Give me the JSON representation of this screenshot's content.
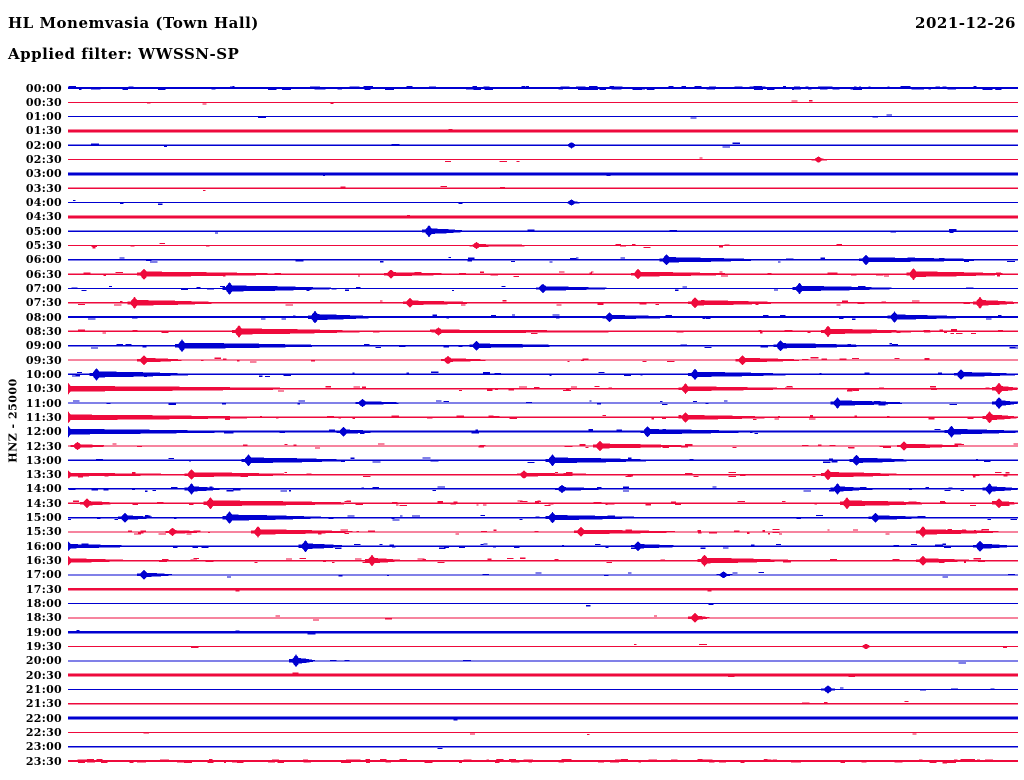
{
  "header": {
    "station_title": "HL Monemvasia (Town Hall)",
    "date": "2021-12-26",
    "filter_label": "Applied filter: WWSSN-SP"
  },
  "axis": {
    "channel_scale_label": "HNZ - 25000"
  },
  "colors": {
    "blue": "#0000d0",
    "red": "#ee0a3c",
    "text": "#000000",
    "background": "#ffffff"
  },
  "chart_data": {
    "type": "line",
    "subtype": "helicorder",
    "title": "HL Monemvasia (Town Hall)",
    "date": "2021-12-26",
    "filter": "WWSSN-SP",
    "channel": "HNZ",
    "scale": 25000,
    "minutes_per_row": 30,
    "row_order": "top-to-bottom",
    "color_cycle": [
      "blue",
      "red"
    ],
    "legend": "rows: label=start time (UTC); base=baseline thickness px; noise=speckle density 0-1; events: t=onset as fraction of 30-min row, d=coda duration fraction, a=amplitude px",
    "rows": [
      {
        "label": "00:00",
        "color": "blue",
        "base": 1.8,
        "noise": 0.95,
        "events": []
      },
      {
        "label": "00:30",
        "color": "red",
        "base": 1.1,
        "noise": 0.06,
        "events": []
      },
      {
        "label": "01:00",
        "color": "blue",
        "base": 1.1,
        "noise": 0.04,
        "events": []
      },
      {
        "label": "01:30",
        "color": "red",
        "base": 2.8,
        "noise": 0.03,
        "events": []
      },
      {
        "label": "02:00",
        "color": "blue",
        "base": 1.1,
        "noise": 0.05,
        "events": [
          {
            "t": 0.53,
            "d": 0.01,
            "a": 1.2
          }
        ]
      },
      {
        "label": "02:30",
        "color": "red",
        "base": 1.1,
        "noise": 0.04,
        "events": [
          {
            "t": 0.79,
            "d": 0.01,
            "a": 1.2
          }
        ]
      },
      {
        "label": "03:00",
        "color": "blue",
        "base": 2.8,
        "noise": 0.03,
        "events": []
      },
      {
        "label": "03:30",
        "color": "red",
        "base": 1.1,
        "noise": 0.04,
        "events": []
      },
      {
        "label": "04:00",
        "color": "blue",
        "base": 1.1,
        "noise": 0.04,
        "events": [
          {
            "t": 0.53,
            "d": 0.01,
            "a": 1.2
          }
        ]
      },
      {
        "label": "04:30",
        "color": "red",
        "base": 2.8,
        "noise": 0.03,
        "events": []
      },
      {
        "label": "05:00",
        "color": "blue",
        "base": 1.2,
        "noise": 0.05,
        "events": [
          {
            "t": 0.38,
            "d": 0.04,
            "a": 2.8
          }
        ]
      },
      {
        "label": "05:30",
        "color": "red",
        "base": 1.1,
        "noise": 0.12,
        "events": [
          {
            "t": 0.43,
            "d": 0.06,
            "a": 1.4
          }
        ]
      },
      {
        "label": "06:00",
        "color": "blue",
        "base": 1.3,
        "noise": 0.25,
        "events": [
          {
            "t": 0.63,
            "d": 0.1,
            "a": 2.6
          },
          {
            "t": 0.84,
            "d": 0.13,
            "a": 2.4
          }
        ]
      },
      {
        "label": "06:30",
        "color": "red",
        "base": 1.5,
        "noise": 0.3,
        "events": [
          {
            "t": 0.08,
            "d": 0.14,
            "a": 2.6
          },
          {
            "t": 0.34,
            "d": 0.06,
            "a": 2.0
          },
          {
            "t": 0.6,
            "d": 0.1,
            "a": 2.4
          },
          {
            "t": 0.89,
            "d": 0.1,
            "a": 2.8
          }
        ]
      },
      {
        "label": "07:00",
        "color": "blue",
        "base": 1.3,
        "noise": 0.2,
        "events": [
          {
            "t": 0.17,
            "d": 0.11,
            "a": 3.0
          },
          {
            "t": 0.5,
            "d": 0.07,
            "a": 2.2
          },
          {
            "t": 0.77,
            "d": 0.1,
            "a": 2.6
          }
        ]
      },
      {
        "label": "07:30",
        "color": "red",
        "base": 1.4,
        "noise": 0.25,
        "events": [
          {
            "t": 0.07,
            "d": 0.09,
            "a": 2.8
          },
          {
            "t": 0.36,
            "d": 0.07,
            "a": 2.2
          },
          {
            "t": 0.66,
            "d": 0.09,
            "a": 2.6
          },
          {
            "t": 0.96,
            "d": 0.04,
            "a": 2.8
          }
        ]
      },
      {
        "label": "08:00",
        "color": "blue",
        "base": 2.0,
        "noise": 0.3,
        "events": [
          {
            "t": 0.26,
            "d": 0.06,
            "a": 3.0
          },
          {
            "t": 0.57,
            "d": 0.06,
            "a": 2.2
          },
          {
            "t": 0.87,
            "d": 0.07,
            "a": 2.6
          }
        ]
      },
      {
        "label": "08:30",
        "color": "red",
        "base": 1.5,
        "noise": 0.25,
        "events": [
          {
            "t": 0.18,
            "d": 0.13,
            "a": 3.0
          },
          {
            "t": 0.39,
            "d": 0.19,
            "a": 1.8
          },
          {
            "t": 0.8,
            "d": 0.09,
            "a": 2.6
          }
        ]
      },
      {
        "label": "09:00",
        "color": "blue",
        "base": 1.5,
        "noise": 0.25,
        "events": [
          {
            "t": 0.12,
            "d": 0.15,
            "a": 3.0
          },
          {
            "t": 0.43,
            "d": 0.09,
            "a": 2.2
          },
          {
            "t": 0.75,
            "d": 0.09,
            "a": 2.6
          }
        ]
      },
      {
        "label": "09:30",
        "color": "red",
        "base": 1.3,
        "noise": 0.2,
        "events": [
          {
            "t": 0.08,
            "d": 0.04,
            "a": 2.2
          },
          {
            "t": 0.4,
            "d": 0.04,
            "a": 1.8
          },
          {
            "t": 0.71,
            "d": 0.06,
            "a": 2.2
          }
        ]
      },
      {
        "label": "10:00",
        "color": "blue",
        "base": 1.5,
        "noise": 0.25,
        "events": [
          {
            "t": 0.03,
            "d": 0.1,
            "a": 3.0
          },
          {
            "t": 0.66,
            "d": 0.1,
            "a": 2.6
          },
          {
            "t": 0.94,
            "d": 0.06,
            "a": 2.4
          }
        ]
      },
      {
        "label": "10:30",
        "color": "red",
        "base": 1.8,
        "noise": 0.3,
        "events": [
          {
            "t": 0.0,
            "d": 0.23,
            "a": 2.8
          },
          {
            "t": 0.65,
            "d": 0.1,
            "a": 2.4
          },
          {
            "t": 0.98,
            "d": 0.02,
            "a": 2.8
          }
        ]
      },
      {
        "label": "11:00",
        "color": "blue",
        "base": 1.3,
        "noise": 0.2,
        "events": [
          {
            "t": 0.31,
            "d": 0.04,
            "a": 1.8
          },
          {
            "t": 0.81,
            "d": 0.07,
            "a": 2.6
          },
          {
            "t": 0.98,
            "d": 0.02,
            "a": 2.8
          }
        ]
      },
      {
        "label": "11:30",
        "color": "red",
        "base": 1.5,
        "noise": 0.25,
        "events": [
          {
            "t": 0.0,
            "d": 0.2,
            "a": 2.8
          },
          {
            "t": 0.65,
            "d": 0.09,
            "a": 2.4
          },
          {
            "t": 0.97,
            "d": 0.03,
            "a": 2.8
          }
        ]
      },
      {
        "label": "12:00",
        "color": "blue",
        "base": 2.0,
        "noise": 0.2,
        "events": [
          {
            "t": 0.0,
            "d": 0.16,
            "a": 2.8
          },
          {
            "t": 0.29,
            "d": 0.03,
            "a": 2.2
          },
          {
            "t": 0.61,
            "d": 0.1,
            "a": 2.6
          },
          {
            "t": 0.93,
            "d": 0.07,
            "a": 2.8
          }
        ]
      },
      {
        "label": "12:30",
        "color": "red",
        "base": 1.3,
        "noise": 0.3,
        "events": [
          {
            "t": 0.01,
            "d": 0.03,
            "a": 1.8
          },
          {
            "t": 0.56,
            "d": 0.09,
            "a": 2.4
          },
          {
            "t": 0.88,
            "d": 0.06,
            "a": 2.2
          }
        ]
      },
      {
        "label": "13:00",
        "color": "blue",
        "base": 1.3,
        "noise": 0.2,
        "events": [
          {
            "t": 0.19,
            "d": 0.11,
            "a": 2.8
          },
          {
            "t": 0.51,
            "d": 0.11,
            "a": 2.8
          },
          {
            "t": 0.83,
            "d": 0.06,
            "a": 2.6
          }
        ]
      },
      {
        "label": "13:30",
        "color": "red",
        "base": 1.3,
        "noise": 0.25,
        "events": [
          {
            "t": 0.0,
            "d": 0.12,
            "a": 1.8
          },
          {
            "t": 0.13,
            "d": 0.11,
            "a": 2.4
          },
          {
            "t": 0.48,
            "d": 0.08,
            "a": 1.8
          },
          {
            "t": 0.8,
            "d": 0.08,
            "a": 2.6
          }
        ]
      },
      {
        "label": "14:00",
        "color": "blue",
        "base": 1.5,
        "noise": 0.35,
        "events": [
          {
            "t": 0.13,
            "d": 0.03,
            "a": 2.6
          },
          {
            "t": 0.52,
            "d": 0.04,
            "a": 1.8
          },
          {
            "t": 0.81,
            "d": 0.03,
            "a": 2.6
          },
          {
            "t": 0.97,
            "d": 0.03,
            "a": 2.6
          }
        ]
      },
      {
        "label": "14:30",
        "color": "red",
        "base": 1.3,
        "noise": 0.5,
        "events": [
          {
            "t": 0.02,
            "d": 0.03,
            "a": 2.2
          },
          {
            "t": 0.15,
            "d": 0.16,
            "a": 2.8
          },
          {
            "t": 0.82,
            "d": 0.09,
            "a": 2.8
          },
          {
            "t": 0.98,
            "d": 0.02,
            "a": 2.2
          }
        ]
      },
      {
        "label": "15:00",
        "color": "blue",
        "base": 1.5,
        "noise": 0.3,
        "events": [
          {
            "t": 0.06,
            "d": 0.03,
            "a": 2.2
          },
          {
            "t": 0.17,
            "d": 0.1,
            "a": 3.0
          },
          {
            "t": 0.51,
            "d": 0.09,
            "a": 2.6
          },
          {
            "t": 0.85,
            "d": 0.05,
            "a": 2.2
          }
        ]
      },
      {
        "label": "15:30",
        "color": "red",
        "base": 1.3,
        "noise": 0.4,
        "events": [
          {
            "t": 0.11,
            "d": 0.03,
            "a": 1.8
          },
          {
            "t": 0.2,
            "d": 0.1,
            "a": 2.6
          },
          {
            "t": 0.54,
            "d": 0.1,
            "a": 2.2
          },
          {
            "t": 0.9,
            "d": 0.08,
            "a": 2.6
          }
        ]
      },
      {
        "label": "16:00",
        "color": "blue",
        "base": 1.8,
        "noise": 0.3,
        "events": [
          {
            "t": 0.0,
            "d": 0.06,
            "a": 2.2
          },
          {
            "t": 0.25,
            "d": 0.04,
            "a": 2.8
          },
          {
            "t": 0.6,
            "d": 0.04,
            "a": 2.2
          },
          {
            "t": 0.96,
            "d": 0.03,
            "a": 2.6
          }
        ]
      },
      {
        "label": "16:30",
        "color": "red",
        "base": 1.5,
        "noise": 0.35,
        "events": [
          {
            "t": 0.0,
            "d": 0.06,
            "a": 2.2
          },
          {
            "t": 0.32,
            "d": 0.03,
            "a": 2.6
          },
          {
            "t": 0.67,
            "d": 0.09,
            "a": 2.8
          },
          {
            "t": 0.9,
            "d": 0.05,
            "a": 2.2
          }
        ]
      },
      {
        "label": "17:00",
        "color": "blue",
        "base": 1.1,
        "noise": 0.1,
        "events": [
          {
            "t": 0.08,
            "d": 0.03,
            "a": 2.2
          },
          {
            "t": 0.69,
            "d": 0.01,
            "a": 1.4
          }
        ]
      },
      {
        "label": "17:30",
        "color": "red",
        "base": 2.8,
        "noise": 0.04,
        "events": []
      },
      {
        "label": "18:00",
        "color": "blue",
        "base": 1.1,
        "noise": 0.03,
        "events": []
      },
      {
        "label": "18:30",
        "color": "red",
        "base": 1.1,
        "noise": 0.04,
        "events": [
          {
            "t": 0.66,
            "d": 0.015,
            "a": 2.2
          }
        ]
      },
      {
        "label": "19:00",
        "color": "blue",
        "base": 2.8,
        "noise": 0.03,
        "events": []
      },
      {
        "label": "19:30",
        "color": "red",
        "base": 1.1,
        "noise": 0.04,
        "events": [
          {
            "t": 0.84,
            "d": 0.005,
            "a": 1.0
          }
        ]
      },
      {
        "label": "20:00",
        "color": "blue",
        "base": 1.1,
        "noise": 0.04,
        "events": [
          {
            "t": 0.24,
            "d": 0.02,
            "a": 3.0
          }
        ]
      },
      {
        "label": "20:30",
        "color": "red",
        "base": 2.8,
        "noise": 0.03,
        "events": []
      },
      {
        "label": "21:00",
        "color": "blue",
        "base": 1.1,
        "noise": 0.04,
        "events": [
          {
            "t": 0.8,
            "d": 0.006,
            "a": 1.8
          }
        ]
      },
      {
        "label": "21:30",
        "color": "red",
        "base": 1.1,
        "noise": 0.03,
        "events": []
      },
      {
        "label": "22:00",
        "color": "blue",
        "base": 2.8,
        "noise": 0.03,
        "events": []
      },
      {
        "label": "22:30",
        "color": "red",
        "base": 1.1,
        "noise": 0.04,
        "events": []
      },
      {
        "label": "23:00",
        "color": "blue",
        "base": 1.1,
        "noise": 0.03,
        "events": []
      },
      {
        "label": "23:30",
        "color": "red",
        "base": 1.6,
        "noise": 0.9,
        "events": []
      }
    ]
  }
}
